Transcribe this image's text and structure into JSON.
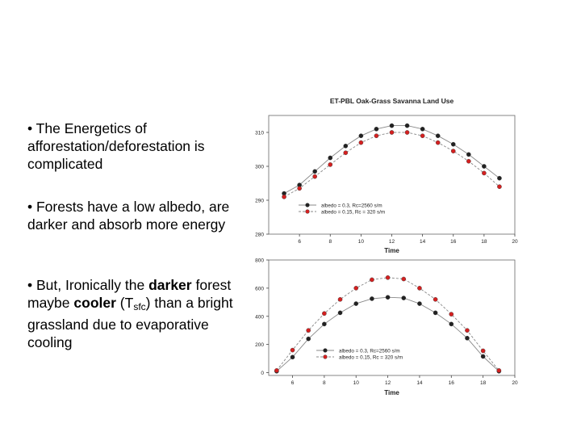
{
  "bullets": {
    "b1": "• The Energetics of afforestation/deforestation is complicated",
    "b2": "• Forests have a low albedo, are darker and absorb more energy",
    "b3_prefix": "• But, Ironically the ",
    "b3_bold1": "darker",
    "b3_mid": " forest maybe ",
    "b3_bold2": "cooler",
    "b3_paren_open": "  (T",
    "b3_sub": "sfc",
    "b3_paren_close": ")",
    "b3_suffix": " than a bright grassland due to evaporative cooling"
  },
  "colors": {
    "series1": "#222222",
    "series2": "#d42020",
    "line": "#888888"
  },
  "chart_data": [
    {
      "type": "line",
      "title": "ET-PBL Oak-Grass Savanna Land Use",
      "xlabel": "Time",
      "ylabel": "",
      "xlim": [
        4,
        20
      ],
      "ylim": [
        280,
        315
      ],
      "xticks": [
        6,
        8,
        10,
        12,
        14,
        16,
        18,
        20
      ],
      "yticks": [
        280,
        290,
        300,
        310
      ],
      "legend": "lower-left",
      "x": [
        5,
        6,
        7,
        8,
        9,
        10,
        11,
        12,
        13,
        14,
        15,
        16,
        17,
        18,
        19
      ],
      "series": [
        {
          "name": "albedo = 0.3, Rc=2560 s/m",
          "values": [
            292,
            294.5,
            298.5,
            302.5,
            306,
            309,
            311,
            312,
            312,
            311,
            309,
            306.5,
            303.5,
            300,
            296.5
          ]
        },
        {
          "name": "albedo = 0.15, Rc = 320 s/m",
          "values": [
            291,
            293.5,
            297,
            300.5,
            304,
            307,
            309,
            310,
            310,
            309,
            307,
            304.5,
            301.5,
            298,
            294
          ]
        }
      ]
    },
    {
      "type": "line",
      "title": "",
      "xlabel": "Time",
      "ylabel": "",
      "xlim": [
        4.5,
        20
      ],
      "ylim": [
        -20,
        800
      ],
      "xticks": [
        6,
        8,
        10,
        12,
        14,
        16,
        18,
        20
      ],
      "yticks": [
        0,
        200,
        400,
        600,
        800
      ],
      "legend": "lower-right",
      "x": [
        5,
        6,
        7,
        8,
        9,
        10,
        11,
        12,
        13,
        14,
        15,
        16,
        17,
        18,
        19
      ],
      "series": [
        {
          "name": "albedo = 0.3, Rc=2560 s/m",
          "values": [
            10,
            110,
            240,
            345,
            425,
            490,
            525,
            535,
            530,
            490,
            425,
            345,
            245,
            115,
            10
          ]
        },
        {
          "name": "albedo = 0.15, Rc = 320 s/m",
          "values": [
            15,
            160,
            300,
            420,
            520,
            600,
            660,
            675,
            665,
            600,
            520,
            415,
            300,
            155,
            15
          ]
        }
      ]
    }
  ]
}
